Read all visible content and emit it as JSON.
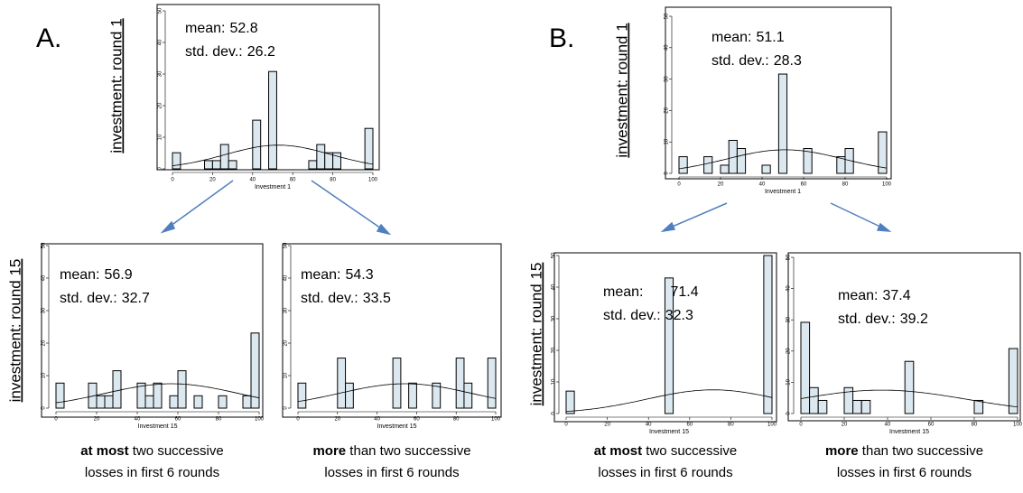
{
  "panel_labels": [
    "A.",
    "B."
  ],
  "chart_data": [
    {
      "type": "histogram",
      "xlabel": "Investment 1",
      "ylabel": "investment: round 1",
      "mean_label": "mean:",
      "mean": 52.8,
      "sd_label": "std. dev.:",
      "sd": 26.2,
      "color": "#dce8ef",
      "xlim": [
        0,
        100
      ],
      "xticks": [
        0,
        20,
        40,
        60,
        80,
        100
      ],
      "ylim": [
        0,
        50
      ],
      "yticks": [
        0,
        10,
        20,
        30,
        40,
        50
      ],
      "bins": [
        0,
        4,
        8,
        12,
        16,
        20,
        24,
        28,
        32,
        36,
        40,
        44,
        48,
        52,
        56,
        60,
        64,
        68,
        72,
        76,
        80,
        84,
        88,
        92,
        96,
        100
      ],
      "values": [
        5.1,
        0,
        0,
        0,
        2.6,
        2.6,
        7.7,
        2.6,
        0,
        0,
        15.4,
        0,
        30.8,
        0,
        0,
        0,
        0,
        2.6,
        7.7,
        5.1,
        5.1,
        0,
        0,
        0,
        12.8
      ]
    },
    {
      "type": "histogram",
      "xlabel": "Investment 15",
      "ylabel": "investment: round 15",
      "mean_label": "mean:",
      "mean": 56.9,
      "sd_label": "std. dev.:",
      "sd": 32.7,
      "color": "#dce8ef",
      "xlim": [
        0,
        100
      ],
      "xticks": [
        0,
        20,
        40,
        60,
        80,
        100
      ],
      "ylim": [
        0,
        50
      ],
      "yticks": [
        0,
        10,
        20,
        30,
        40,
        50
      ],
      "bins": [
        0,
        4,
        8,
        12,
        16,
        20,
        24,
        28,
        32,
        36,
        40,
        44,
        48,
        52,
        56,
        60,
        64,
        68,
        72,
        76,
        80,
        84,
        88,
        92,
        96,
        100
      ],
      "values": [
        7.7,
        0,
        0,
        0,
        7.7,
        3.8,
        3.8,
        11.5,
        0,
        0,
        7.7,
        3.8,
        7.7,
        0,
        3.8,
        11.5,
        0,
        3.8,
        0,
        0,
        3.8,
        0,
        0,
        3.8,
        23.1
      ],
      "caption": [
        "at most",
        " two successive",
        "losses in first 6 rounds"
      ]
    },
    {
      "type": "histogram",
      "xlabel": "Investment 15",
      "mean_label": "mean:",
      "mean": 54.3,
      "sd_label": "std. dev.:",
      "sd": 33.5,
      "color": "#dce8ef",
      "xlim": [
        0,
        100
      ],
      "xticks": [
        0,
        20,
        40,
        60,
        80,
        100
      ],
      "ylim": [
        0,
        50
      ],
      "yticks": [
        0,
        10,
        20,
        30,
        40,
        50
      ],
      "bins": [
        0,
        4,
        8,
        12,
        16,
        20,
        24,
        28,
        32,
        36,
        40,
        44,
        48,
        52,
        56,
        60,
        64,
        68,
        72,
        76,
        80,
        84,
        88,
        92,
        96,
        100
      ],
      "values": [
        7.7,
        0,
        0,
        0,
        0,
        15.4,
        7.7,
        0,
        0,
        0,
        0,
        0,
        15.4,
        0,
        7.7,
        0,
        0,
        7.7,
        0,
        0,
        15.4,
        7.7,
        0,
        0,
        15.4
      ],
      "caption": [
        "more",
        " than two successive",
        "losses in first 6 rounds"
      ]
    },
    {
      "type": "histogram",
      "xlabel": "Investment 1",
      "ylabel": "investment: round 1",
      "mean_label": "mean:",
      "mean": 51.1,
      "sd_label": "std. dev.:",
      "sd": 28.3,
      "color": "#dce8ef",
      "xlim": [
        0,
        100
      ],
      "xticks": [
        0,
        20,
        40,
        60,
        80,
        100
      ],
      "ylim": [
        0,
        50
      ],
      "yticks": [
        0,
        10,
        20,
        30,
        40,
        50
      ],
      "bins": [
        0,
        4,
        8,
        12,
        16,
        20,
        24,
        28,
        32,
        36,
        40,
        44,
        48,
        52,
        56,
        60,
        64,
        68,
        72,
        76,
        80,
        84,
        88,
        92,
        96,
        100
      ],
      "values": [
        5.3,
        0,
        0,
        5.3,
        0,
        2.6,
        10.5,
        7.9,
        0,
        0,
        2.6,
        0,
        31.6,
        0,
        0,
        7.9,
        0,
        0,
        0,
        5.3,
        7.9,
        0,
        0,
        0,
        13.2
      ]
    },
    {
      "type": "histogram",
      "xlabel": "Investment 15",
      "ylabel": "investment: round 15",
      "mean_label": "mean:",
      "mean": 71.4,
      "sd_label": "std. dev.:",
      "sd": 32.3,
      "color": "#dce8ef",
      "xlim": [
        0,
        100
      ],
      "xticks": [
        0,
        20,
        40,
        60,
        80,
        100
      ],
      "ylim": [
        0,
        50
      ],
      "yticks": [
        0,
        10,
        20,
        30,
        40,
        50
      ],
      "bins": [
        0,
        4,
        8,
        12,
        16,
        20,
        24,
        28,
        32,
        36,
        40,
        44,
        48,
        52,
        56,
        60,
        64,
        68,
        72,
        76,
        80,
        84,
        88,
        92,
        96,
        100
      ],
      "values": [
        7.1,
        0,
        0,
        0,
        0,
        0,
        0,
        0,
        0,
        0,
        0,
        0,
        42.9,
        0,
        0,
        0,
        0,
        0,
        0,
        0,
        0,
        0,
        0,
        0,
        50
      ],
      "caption": [
        "at most",
        " two successive",
        "losses in first 6 rounds"
      ]
    },
    {
      "type": "histogram",
      "xlabel": "Investment 15",
      "mean_label": "mean:",
      "mean": 37.4,
      "sd_label": "std. dev.:",
      "sd": 39.2,
      "color": "#dce8ef",
      "xlim": [
        0,
        100
      ],
      "xticks": [
        0,
        20,
        40,
        60,
        80,
        100
      ],
      "ylim": [
        0,
        50
      ],
      "yticks": [
        0,
        10,
        20,
        30,
        40,
        50
      ],
      "bins": [
        0,
        4,
        8,
        12,
        16,
        20,
        24,
        28,
        32,
        36,
        40,
        44,
        48,
        52,
        56,
        60,
        64,
        68,
        72,
        76,
        80,
        84,
        88,
        92,
        96,
        100
      ],
      "values": [
        29.2,
        8.3,
        4.2,
        0,
        0,
        8.3,
        4.2,
        4.2,
        0,
        0,
        0,
        0,
        16.7,
        0,
        0,
        0,
        0,
        0,
        0,
        0,
        4.2,
        0,
        0,
        0,
        20.8
      ],
      "caption": [
        "more",
        " than two successive",
        "losses in first 6 rounds"
      ]
    }
  ]
}
